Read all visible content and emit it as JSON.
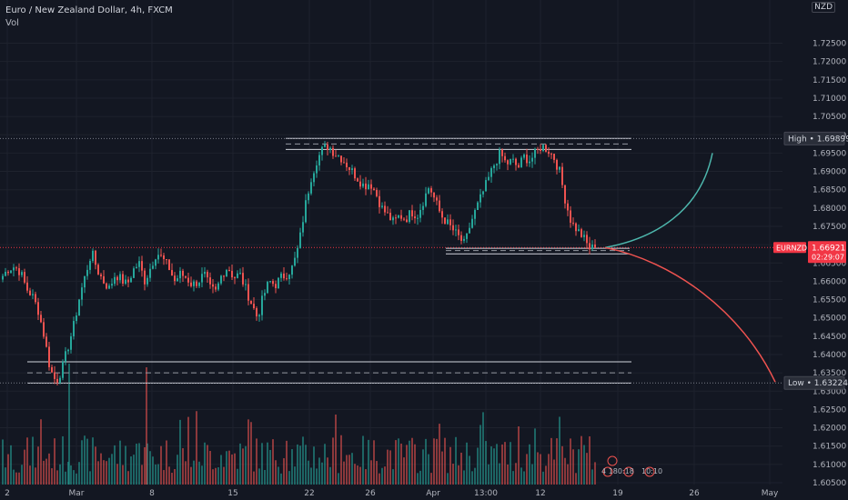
{
  "header": {
    "symbol_title": "Euro / New Zealand Dollar, 4h, FXCM",
    "volume_label": "Vol",
    "currency": "NZD"
  },
  "chart_data": {
    "type": "candlestick",
    "y_axis": {
      "range": [
        1.6045,
        1.7368
      ],
      "ticks": [
        "1.72500",
        "1.72000",
        "1.71500",
        "1.71000",
        "1.70500",
        "1.70000",
        "1.69500",
        "1.69000",
        "1.68500",
        "1.68000",
        "1.67500",
        "1.67000",
        "1.66500",
        "1.66000",
        "1.65500",
        "1.65000",
        "1.64500",
        "1.64000",
        "1.63500",
        "1.63000",
        "1.62500",
        "1.62000",
        "1.61500",
        "1.61000",
        "1.60500"
      ]
    },
    "x_axis": {
      "ticks": [
        "2",
        "Mar",
        "8",
        "15",
        "22",
        "26",
        "Apr",
        "13:00",
        "12",
        "19",
        "26",
        "May"
      ]
    },
    "price_labels": {
      "high": "High • 1.69899",
      "current_symbol": "EURNZD",
      "current_price": "1.66921",
      "countdown": "02:29:07",
      "low": "Low • 1.63224"
    },
    "price_path": [
      1.6615,
      1.6635,
      1.664,
      1.6625,
      1.658,
      1.656,
      1.652,
      1.645,
      1.636,
      1.6325,
      1.636,
      1.642,
      1.648,
      1.656,
      1.662,
      1.668,
      1.663,
      1.66,
      1.658,
      1.662,
      1.6605,
      1.659,
      1.663,
      1.665,
      1.66,
      1.664,
      1.668,
      1.666,
      1.664,
      1.66,
      1.662,
      1.661,
      1.659,
      1.66,
      1.662,
      1.658,
      1.657,
      1.662,
      1.664,
      1.661,
      1.662,
      1.658,
      1.654,
      1.65,
      1.656,
      1.66,
      1.659,
      1.661,
      1.662,
      1.664,
      1.67,
      1.68,
      1.688,
      1.693,
      1.696,
      1.697,
      1.695,
      1.694,
      1.692,
      1.69,
      1.688,
      1.686,
      1.687,
      1.684,
      1.68,
      1.678,
      1.676,
      1.678,
      1.677,
      1.679,
      1.678,
      1.682,
      1.686,
      1.682,
      1.678,
      1.676,
      1.674,
      1.672,
      1.67,
      1.676,
      1.68,
      1.684,
      1.688,
      1.692,
      1.695,
      1.692,
      1.693,
      1.691,
      1.694,
      1.693,
      1.695,
      1.697,
      1.696,
      1.694,
      1.69,
      1.682,
      1.676,
      1.674,
      1.672,
      1.669,
      1.6692
    ],
    "levels": {
      "top_zone": [
        1.699,
        1.696
      ],
      "top_dashed": 1.6975,
      "mid_zone": [
        1.669,
        1.6675
      ],
      "mid_dashed": 1.6684,
      "bottom_zone": [
        1.638,
        1.6322
      ],
      "bottom_dashed": 1.635,
      "high_level": 1.69899,
      "current_level": 1.66921,
      "low_level": 1.63224
    },
    "projections": [
      {
        "name": "bullish",
        "color": "#4db6ac",
        "end": 1.695
      },
      {
        "name": "bearish",
        "color": "#ef5350",
        "end": 1.6325
      }
    ],
    "colors": {
      "up": "#26a69a",
      "down": "#ef5350",
      "volume_up": "#26a69a",
      "volume_down": "#ef5350",
      "background": "#131722",
      "axis_text": "#b2b5be",
      "high_label": "#2a2e39",
      "current_label": "#f23645",
      "low_label": "#2a2e39"
    },
    "event_markers": [
      "4",
      "180:18",
      "10:10"
    ]
  }
}
